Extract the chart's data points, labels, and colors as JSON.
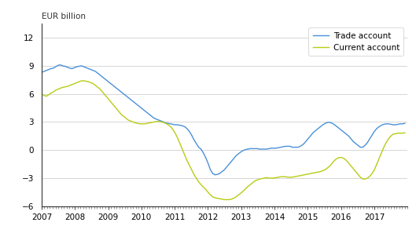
{
  "title": "",
  "ylabel": "EUR billion",
  "ylim": [
    -6,
    13.5
  ],
  "yticks": [
    -6,
    -3,
    0,
    3,
    6,
    9,
    12
  ],
  "trade_color": "#4a90d9",
  "current_color": "#b8cc14",
  "trade_label": "Trade account",
  "current_label": "Current account",
  "background_color": "#ffffff",
  "grid_color": "#d0d0d0",
  "trade_account": [
    8.3,
    8.4,
    8.5,
    8.6,
    8.7,
    8.75,
    8.9,
    9.05,
    9.1,
    9.0,
    8.95,
    8.85,
    8.75,
    8.7,
    8.8,
    8.9,
    8.95,
    9.0,
    8.9,
    8.8,
    8.7,
    8.6,
    8.5,
    8.4,
    8.2,
    8.0,
    7.8,
    7.6,
    7.4,
    7.2,
    7.0,
    6.8,
    6.6,
    6.4,
    6.2,
    6.0,
    5.8,
    5.6,
    5.4,
    5.2,
    5.0,
    4.8,
    4.6,
    4.4,
    4.2,
    4.0,
    3.8,
    3.6,
    3.4,
    3.3,
    3.2,
    3.1,
    3.0,
    2.9,
    2.85,
    2.8,
    2.75,
    2.7,
    2.7,
    2.65,
    2.6,
    2.5,
    2.3,
    2.0,
    1.6,
    1.1,
    0.7,
    0.3,
    0.1,
    -0.3,
    -0.8,
    -1.4,
    -2.1,
    -2.5,
    -2.65,
    -2.6,
    -2.5,
    -2.3,
    -2.1,
    -1.8,
    -1.5,
    -1.2,
    -0.9,
    -0.6,
    -0.4,
    -0.2,
    -0.05,
    0.05,
    0.1,
    0.15,
    0.15,
    0.15,
    0.15,
    0.1,
    0.1,
    0.1,
    0.1,
    0.15,
    0.2,
    0.2,
    0.2,
    0.25,
    0.3,
    0.35,
    0.4,
    0.4,
    0.4,
    0.3,
    0.3,
    0.3,
    0.35,
    0.5,
    0.7,
    1.0,
    1.3,
    1.6,
    1.9,
    2.1,
    2.3,
    2.5,
    2.7,
    2.85,
    2.95,
    2.95,
    2.85,
    2.7,
    2.5,
    2.3,
    2.1,
    1.9,
    1.7,
    1.5,
    1.2,
    0.9,
    0.7,
    0.5,
    0.3,
    0.3,
    0.5,
    0.8,
    1.2,
    1.6,
    2.0,
    2.3,
    2.5,
    2.65,
    2.75,
    2.8,
    2.8,
    2.75,
    2.7,
    2.7,
    2.75,
    2.8,
    2.8,
    2.85
  ],
  "current_account": [
    6.0,
    5.85,
    5.75,
    5.9,
    6.1,
    6.2,
    6.4,
    6.5,
    6.6,
    6.7,
    6.75,
    6.8,
    6.9,
    7.0,
    7.1,
    7.2,
    7.3,
    7.4,
    7.4,
    7.35,
    7.3,
    7.2,
    7.1,
    6.9,
    6.7,
    6.5,
    6.2,
    5.9,
    5.6,
    5.3,
    5.0,
    4.7,
    4.4,
    4.1,
    3.8,
    3.6,
    3.4,
    3.2,
    3.1,
    3.0,
    2.9,
    2.85,
    2.8,
    2.8,
    2.8,
    2.85,
    2.9,
    2.95,
    3.0,
    3.05,
    3.05,
    3.0,
    2.95,
    2.85,
    2.7,
    2.5,
    2.2,
    1.8,
    1.3,
    0.7,
    0.1,
    -0.5,
    -1.1,
    -1.6,
    -2.1,
    -2.6,
    -3.0,
    -3.4,
    -3.7,
    -3.95,
    -4.2,
    -4.5,
    -4.8,
    -5.0,
    -5.1,
    -5.15,
    -5.2,
    -5.25,
    -5.3,
    -5.3,
    -5.3,
    -5.25,
    -5.15,
    -5.0,
    -4.8,
    -4.6,
    -4.4,
    -4.15,
    -3.9,
    -3.7,
    -3.5,
    -3.3,
    -3.2,
    -3.1,
    -3.05,
    -3.0,
    -2.95,
    -3.0,
    -3.0,
    -3.0,
    -2.95,
    -2.9,
    -2.85,
    -2.85,
    -2.85,
    -2.9,
    -2.9,
    -2.9,
    -2.85,
    -2.8,
    -2.75,
    -2.7,
    -2.65,
    -2.6,
    -2.55,
    -2.5,
    -2.45,
    -2.4,
    -2.35,
    -2.3,
    -2.2,
    -2.1,
    -1.9,
    -1.7,
    -1.4,
    -1.1,
    -0.9,
    -0.8,
    -0.8,
    -0.9,
    -1.1,
    -1.4,
    -1.7,
    -2.0,
    -2.3,
    -2.6,
    -2.9,
    -3.1,
    -3.1,
    -3.0,
    -2.8,
    -2.5,
    -2.1,
    -1.5,
    -0.9,
    -0.3,
    0.3,
    0.8,
    1.2,
    1.5,
    1.7,
    1.75,
    1.8,
    1.8,
    1.8,
    1.85
  ],
  "xlim_start": 2007.0,
  "xlim_end": 2018.0,
  "xtick_years": [
    2007,
    2008,
    2009,
    2010,
    2011,
    2012,
    2013,
    2014,
    2015,
    2016,
    2017
  ]
}
